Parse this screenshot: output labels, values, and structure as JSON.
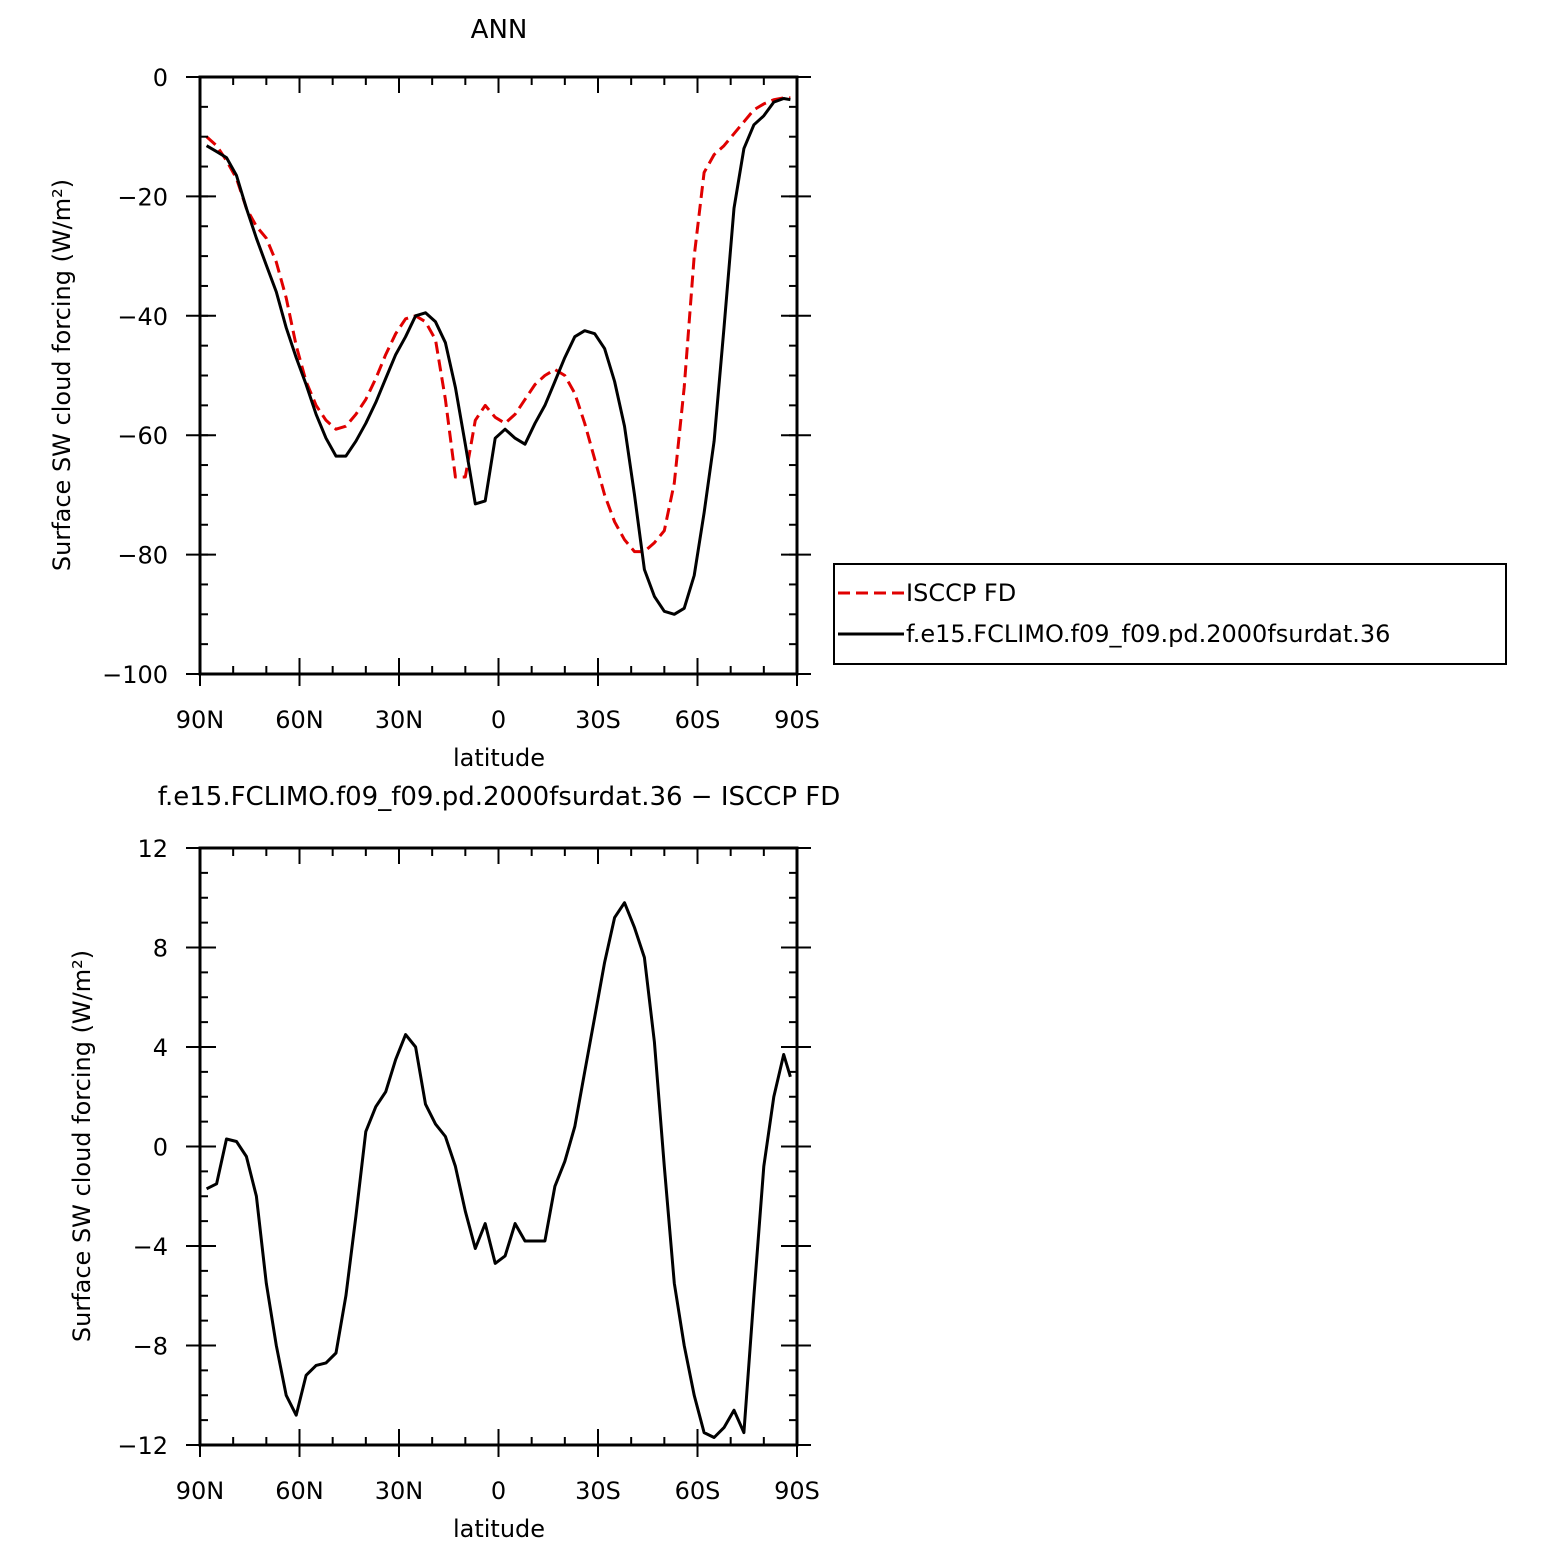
{
  "chart_data": [
    {
      "type": "line",
      "title": "ANN",
      "xlabel": "latitude",
      "ylabel": "Surface SW cloud forcing (W/m²)",
      "ylim": [
        -100,
        0
      ],
      "xlim": [
        90,
        -90
      ],
      "x_ticks": [
        90,
        60,
        30,
        0,
        -30,
        -60,
        -90
      ],
      "x_tick_labels": [
        "90N",
        "60N",
        "30N",
        "0",
        "30S",
        "60S",
        "90S"
      ],
      "y_ticks": [
        0,
        -20,
        -40,
        -60,
        -80,
        -100
      ],
      "y_tick_labels": [
        "0",
        "−20",
        "−40",
        "−60",
        "−80",
        "−100"
      ],
      "grid": false,
      "legend_position": "right",
      "series": [
        {
          "name": "ISCCP FD",
          "color": "#e00000",
          "dash": "dashed",
          "x": [
            88,
            85,
            82,
            79,
            76,
            73,
            70,
            67,
            64,
            61,
            58,
            55,
            52,
            49,
            46,
            43,
            40,
            37,
            34,
            31,
            28,
            25,
            22,
            19,
            16,
            13,
            10,
            7,
            4,
            1,
            -2,
            -5,
            -8,
            -11,
            -14,
            -17,
            -20,
            -23,
            -26,
            -29,
            -32,
            -35,
            -38,
            -41,
            -44,
            -47,
            -50,
            -53,
            -56,
            -59,
            -62,
            -65,
            -68,
            -71,
            -74,
            -77,
            -80,
            -83,
            -86,
            -88
          ],
          "y": [
            -10,
            -11.5,
            -14,
            -17,
            -22,
            -25,
            -27,
            -31,
            -37,
            -45,
            -51,
            -55,
            -57.5,
            -59,
            -58.5,
            -56.5,
            -54,
            -50.5,
            -46.5,
            -43,
            -40.5,
            -40,
            -41,
            -44,
            -54,
            -67,
            -67,
            -57.5,
            -55,
            -57,
            -58,
            -56.5,
            -54,
            -51.5,
            -50,
            -49,
            -50,
            -53,
            -58,
            -64,
            -70,
            -74.5,
            -77.5,
            -79.5,
            -79.5,
            -78,
            -76,
            -68,
            -52,
            -30,
            -16,
            -13,
            -11.5,
            -9.5,
            -7.5,
            -5.5,
            -4.5,
            -3.8,
            -3.5,
            -3.5
          ]
        },
        {
          "name": "f.e15.FCLIMO.f09_f09.pd.2000fsurdat.36",
          "color": "#000000",
          "dash": "solid",
          "x": [
            88,
            85,
            82,
            79,
            76,
            73,
            70,
            67,
            64,
            61,
            58,
            55,
            52,
            49,
            46,
            43,
            40,
            37,
            34,
            31,
            28,
            25,
            22,
            19,
            16,
            13,
            10,
            7,
            4,
            1,
            -2,
            -5,
            -8,
            -11,
            -14,
            -17,
            -20,
            -23,
            -26,
            -29,
            -32,
            -35,
            -38,
            -41,
            -44,
            -47,
            -50,
            -53,
            -56,
            -59,
            -62,
            -65,
            -68,
            -71,
            -74,
            -77,
            -80,
            -83,
            -86,
            -88
          ],
          "y": [
            -11.5,
            -12.5,
            -13.5,
            -16.5,
            -22,
            -27,
            -31.5,
            -36,
            -42,
            -47,
            -51.5,
            -56.5,
            -60.5,
            -63.5,
            -63.5,
            -61,
            -58,
            -54.5,
            -50.5,
            -46.5,
            -43.5,
            -40,
            -39.5,
            -41,
            -44.5,
            -52,
            -61.5,
            -71.5,
            -71,
            -60.5,
            -59,
            -60.5,
            -61.5,
            -58,
            -55,
            -51,
            -47,
            -43.5,
            -42.5,
            -43,
            -45.5,
            -51,
            -58.5,
            -70,
            -82.5,
            -87,
            -89.5,
            -90,
            -89,
            -83.5,
            -73,
            -61,
            -42,
            -22,
            -12,
            -8,
            -6.5,
            -4.2,
            -3.6,
            -3.8
          ]
        }
      ]
    },
    {
      "type": "line",
      "title": "f.e15.FCLIMO.f09_f09.pd.2000fsurdat.36 − ISCCP FD",
      "xlabel": "latitude",
      "ylabel": "Surface SW cloud forcing (W/m²)",
      "ylim": [
        -12,
        12
      ],
      "xlim": [
        90,
        -90
      ],
      "x_ticks": [
        90,
        60,
        30,
        0,
        -30,
        -60,
        -90
      ],
      "x_tick_labels": [
        "90N",
        "60N",
        "30N",
        "0",
        "30S",
        "60S",
        "90S"
      ],
      "y_ticks": [
        12,
        8,
        4,
        0,
        -4,
        -8,
        -12
      ],
      "y_tick_labels": [
        "12",
        "8",
        "4",
        "0",
        "−4",
        "−8",
        "−12"
      ],
      "grid": false,
      "series": [
        {
          "color": "#000000",
          "dash": "solid",
          "x": [
            88,
            85,
            82,
            79,
            76,
            73,
            70,
            67,
            64,
            61,
            58,
            55,
            52,
            49,
            46,
            43,
            40,
            37,
            34,
            31,
            28,
            25,
            22,
            19,
            16,
            13,
            10,
            7,
            4,
            1,
            -2,
            -5,
            -8,
            -11,
            -14,
            -17,
            -20,
            -23,
            -26,
            -29,
            -32,
            -35,
            -38,
            -41,
            -44,
            -47,
            -50,
            -53,
            -56,
            -59,
            -62,
            -65,
            -68,
            -71,
            -74,
            -77,
            -80,
            -83,
            -86,
            -88
          ],
          "y": [
            -1.7,
            -1.5,
            0.3,
            0.2,
            -0.4,
            -2.0,
            -5.5,
            -8.0,
            -10.0,
            -10.8,
            -9.2,
            -8.8,
            -8.7,
            -8.3,
            -6.0,
            -2.8,
            0.6,
            1.6,
            2.2,
            3.5,
            4.5,
            4.0,
            1.7,
            0.9,
            0.4,
            -0.8,
            -2.6,
            -4.1,
            -3.1,
            -4.7,
            -4.4,
            -3.1,
            -3.8,
            -3.8,
            -3.8,
            -1.6,
            -0.6,
            0.8,
            3.0,
            5.2,
            7.4,
            9.2,
            9.8,
            8.8,
            7.6,
            4.2,
            -0.8,
            -5.5,
            -8.0,
            -10.0,
            -11.5,
            -11.7,
            -11.3,
            -10.6,
            -11.5,
            -6.0,
            -0.8,
            2.0,
            3.7,
            2.8
          ]
        }
      ]
    }
  ]
}
